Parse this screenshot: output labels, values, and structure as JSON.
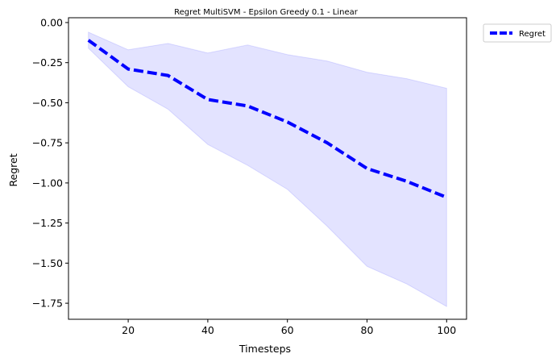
{
  "chart_data": {
    "type": "line",
    "title": "Regret MultiSVM - Epsilon Greedy 0.1 - Linear",
    "xlabel": "Timesteps",
    "ylabel": "Regret",
    "xlim": [
      5,
      105
    ],
    "ylim": [
      -1.85,
      0.03
    ],
    "x_ticks": [
      20,
      40,
      60,
      80,
      100
    ],
    "x_tick_labels": [
      "20",
      "40",
      "60",
      "80",
      "100"
    ],
    "y_ticks": [
      0.0,
      -0.25,
      -0.5,
      -0.75,
      -1.0,
      -1.25,
      -1.5,
      -1.75
    ],
    "y_tick_labels": [
      "0.00",
      "−0.25",
      "−0.50",
      "−0.75",
      "−1.00",
      "−1.25",
      "−1.50",
      "−1.75"
    ],
    "grid": false,
    "legend_position": "outside-top-right",
    "x": [
      10,
      20,
      30,
      40,
      50,
      60,
      70,
      80,
      90,
      100
    ],
    "series": [
      {
        "name": "Regret",
        "values": [
          -0.11,
          -0.29,
          -0.33,
          -0.48,
          -0.52,
          -0.62,
          -0.75,
          -0.91,
          -0.99,
          -1.09
        ],
        "upper": [
          -0.06,
          -0.17,
          -0.13,
          -0.19,
          -0.14,
          -0.2,
          -0.24,
          -0.31,
          -0.35,
          -0.41
        ],
        "lower": [
          -0.16,
          -0.4,
          -0.54,
          -0.76,
          -0.89,
          -1.04,
          -1.27,
          -1.52,
          -1.63,
          -1.77
        ],
        "color": "#0000ff",
        "band_color": "#0000ff",
        "line_style": "dashed"
      }
    ]
  }
}
